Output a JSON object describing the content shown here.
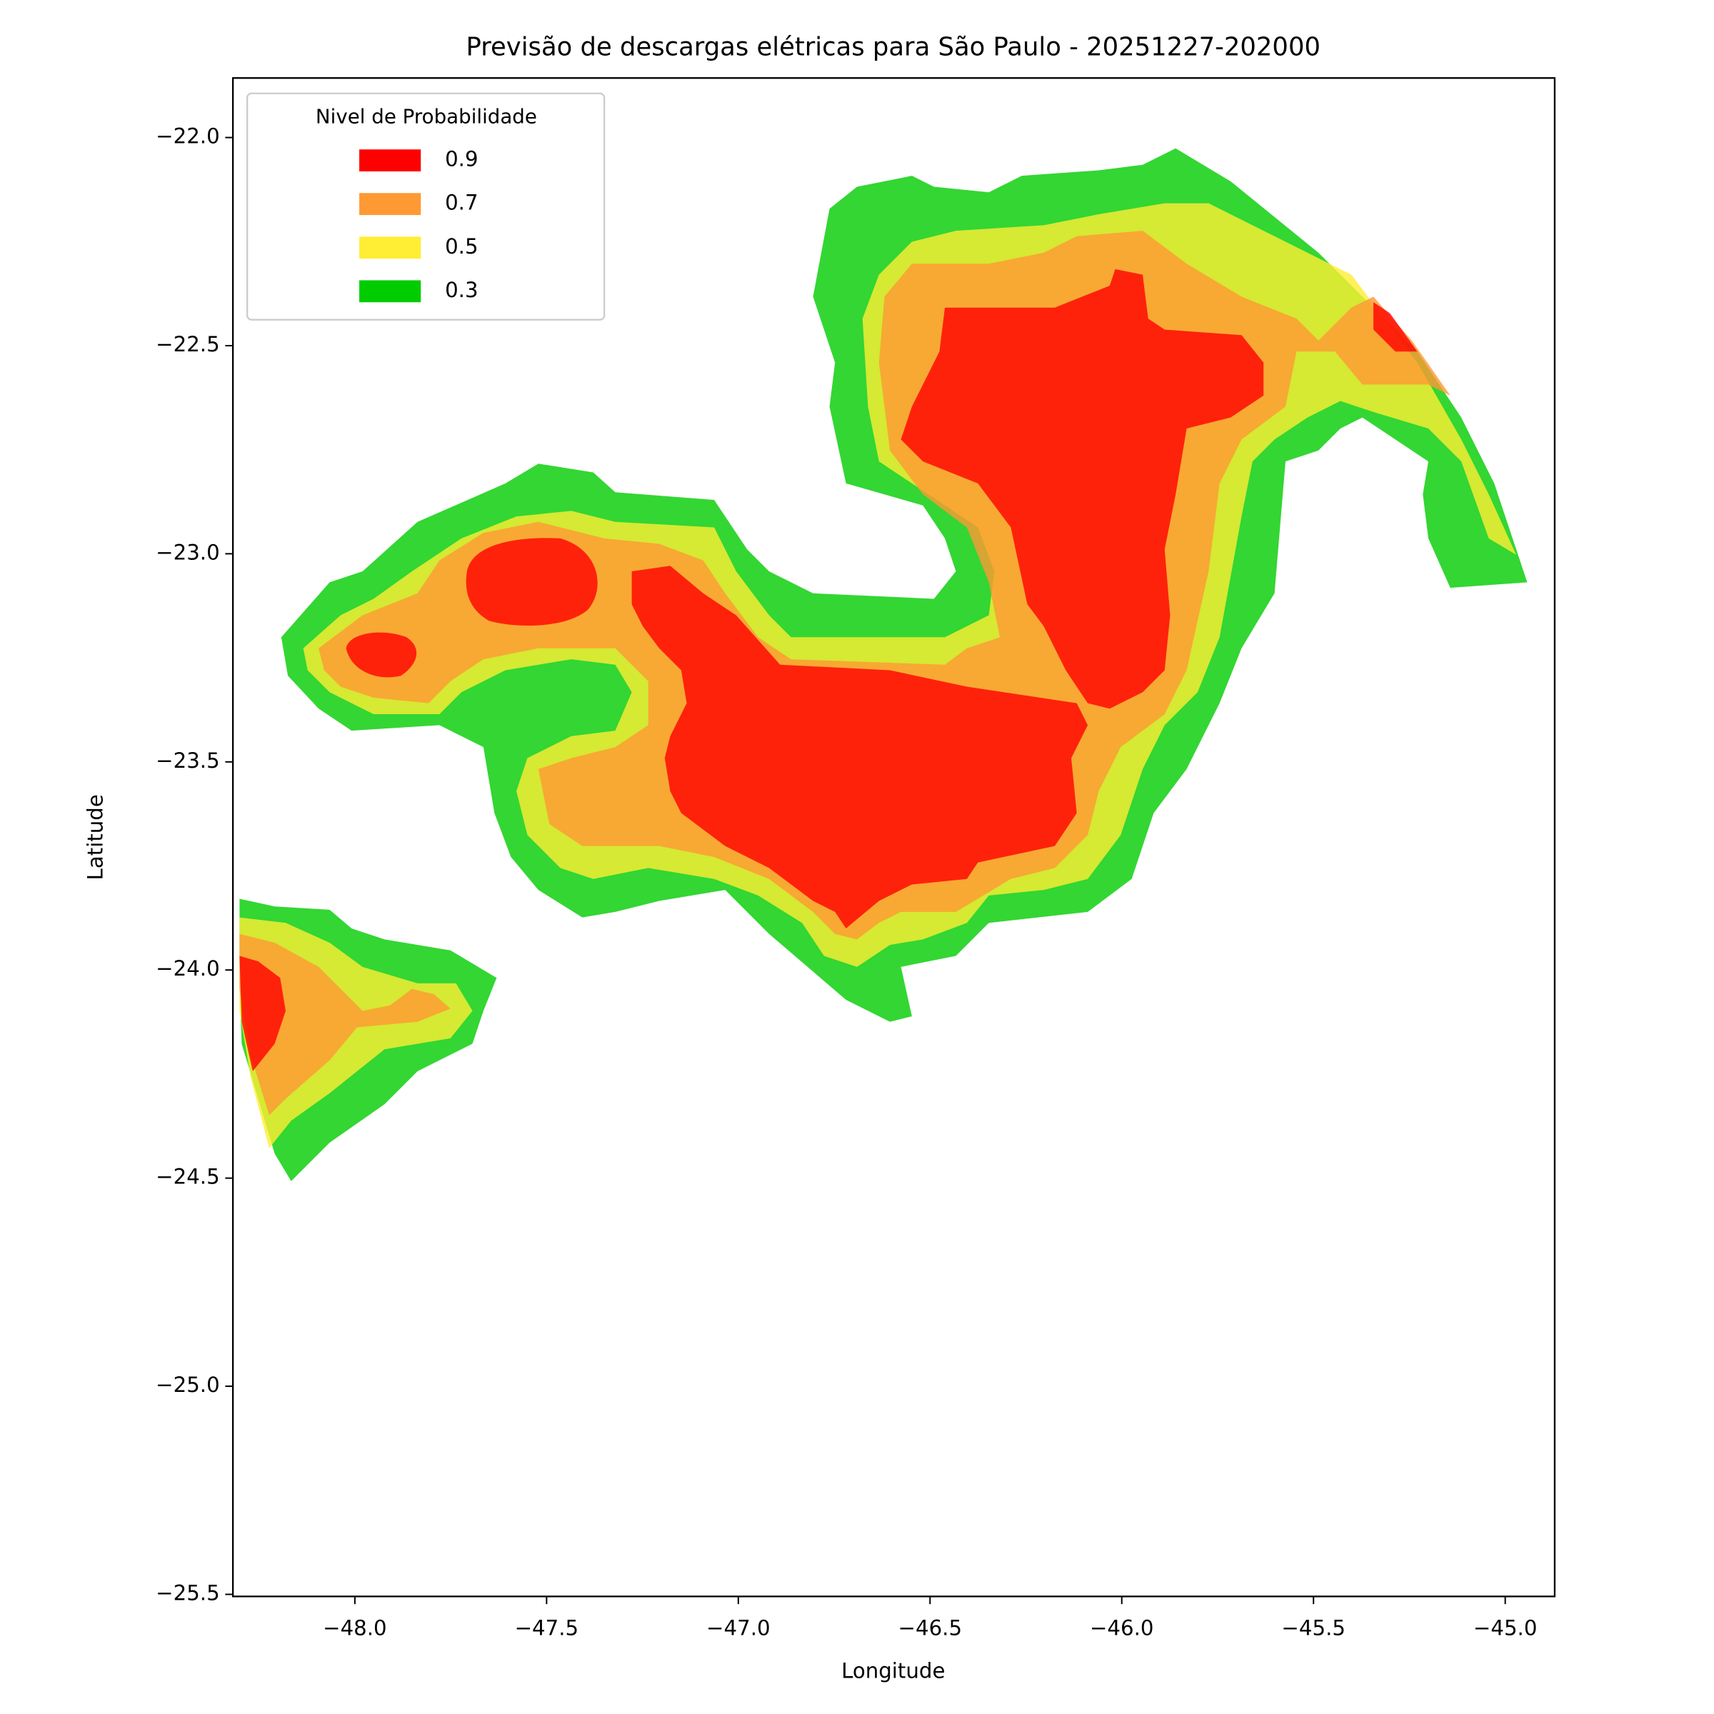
{
  "chart_data": {
    "type": "contour",
    "title": "Previsão de descargas elétricas para São Paulo - 20251227-202000",
    "xlabel": "Longitude",
    "ylabel": "Latitude",
    "legend_title": "Nivel de Probabilidade",
    "legend": "upper left",
    "xlim": [
      -48.318,
      -44.871
    ],
    "ylim": [
      -25.505,
      -21.857
    ],
    "xticks": [
      {
        "value": -48.0,
        "label": "−48.0"
      },
      {
        "value": -47.5,
        "label": "−47.5"
      },
      {
        "value": -47.0,
        "label": "−47.0"
      },
      {
        "value": -46.5,
        "label": "−46.5"
      },
      {
        "value": -46.0,
        "label": "−46.0"
      },
      {
        "value": -45.5,
        "label": "−45.5"
      },
      {
        "value": -45.0,
        "label": "−45.0"
      }
    ],
    "yticks": [
      {
        "value": -22.0,
        "label": "−22.0"
      },
      {
        "value": -22.5,
        "label": "−22.5"
      },
      {
        "value": -23.0,
        "label": "−23.0"
      },
      {
        "value": -23.5,
        "label": "−23.5"
      },
      {
        "value": -24.0,
        "label": "−24.0"
      },
      {
        "value": -24.5,
        "label": "−24.5"
      },
      {
        "value": -25.0,
        "label": "−25.0"
      },
      {
        "value": -25.5,
        "label": "−25.5"
      }
    ],
    "series": [
      {
        "name": "0.9",
        "color": "#ff0000"
      },
      {
        "name": "0.7",
        "color": "#ff9933"
      },
      {
        "name": "0.5",
        "color": "#ffee33"
      },
      {
        "name": "0.3",
        "color": "#00cc00"
      }
    ]
  }
}
